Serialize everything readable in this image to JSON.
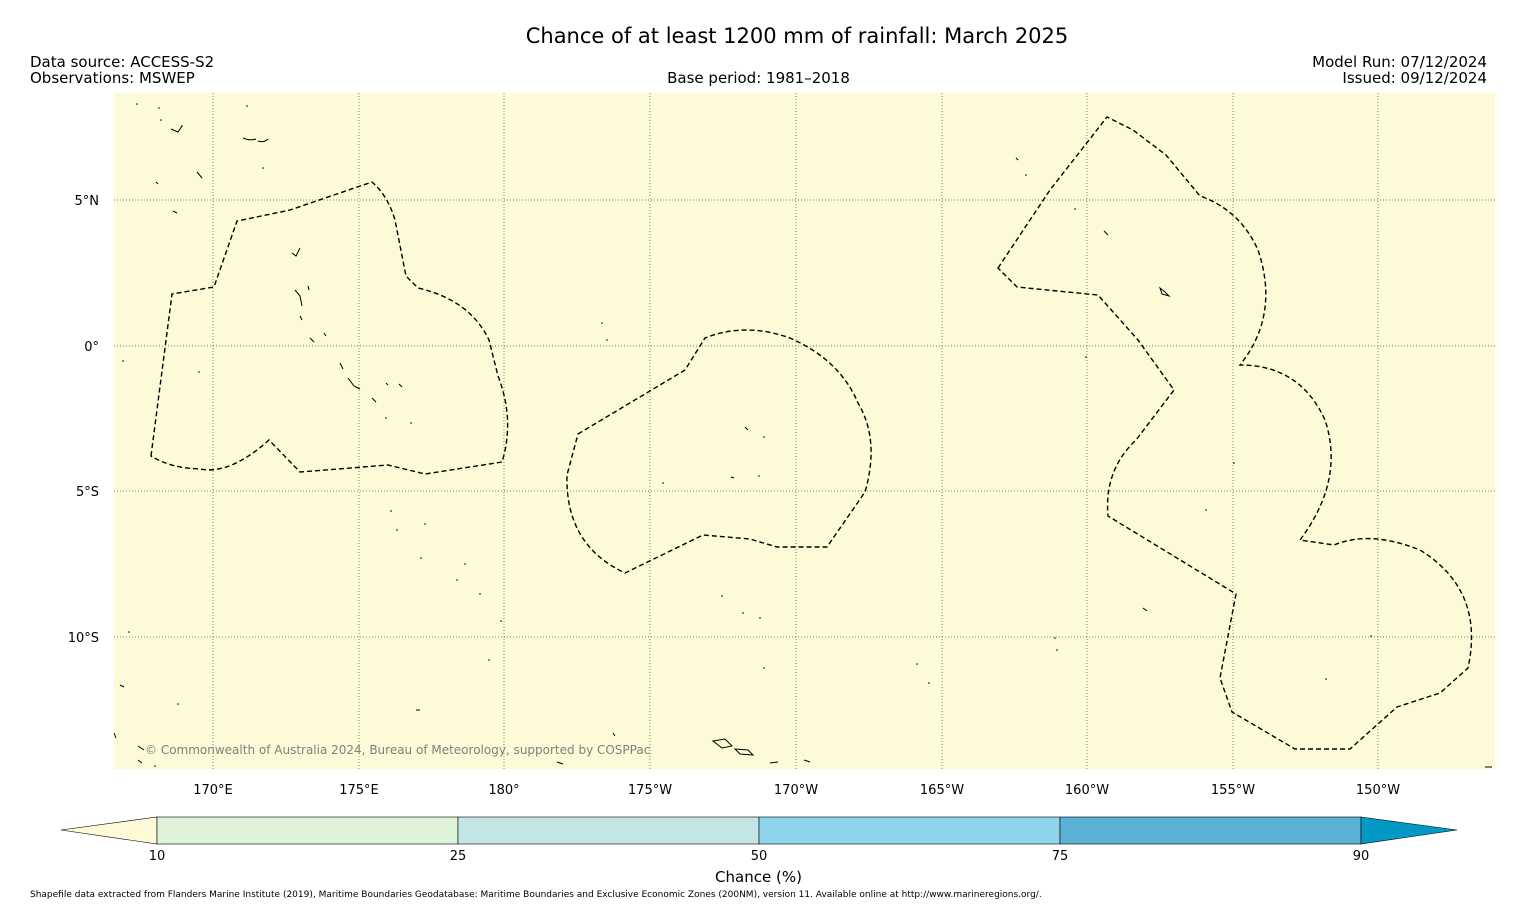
{
  "header": {
    "title": "Chance of at least 1200 mm of rainfall: March 2025",
    "data_source": "Data source: ACCESS-S2",
    "observations": "Observations: MSWEP",
    "base_period": "Base period: 1981–2018",
    "model_run": "Model Run: 07/12/2024",
    "issued": "Issued: 09/12/2024"
  },
  "map": {
    "background_color": "#fef9d6",
    "lon_ticks": [
      "170°E",
      "175°E",
      "180°",
      "175°W",
      "170°W",
      "165°W",
      "160°W",
      "155°W",
      "150°W"
    ],
    "lat_ticks": [
      "5°N",
      "0°",
      "5°S",
      "10°S"
    ],
    "copyright": "© Commonwealth of Australia 2024, Bureau of Meteorology, supported by COSPPac"
  },
  "colorbar": {
    "label": "Chance (%)",
    "ticks": [
      "10",
      "25",
      "50",
      "75",
      "90"
    ],
    "colors": [
      "#fef9d6",
      "#dff3d9",
      "#c3e5e4",
      "#8ed4ec",
      "#5cb2d6",
      "#0399c7"
    ]
  },
  "footer": {
    "text": "Shapefile data extracted from Flanders Marine Institute (2019), Maritime Boundaries Geodatabase: Maritime Boundaries and Exclusive Economic Zones (200NM), version 11. Available online at http://www.marineregions.org/."
  }
}
